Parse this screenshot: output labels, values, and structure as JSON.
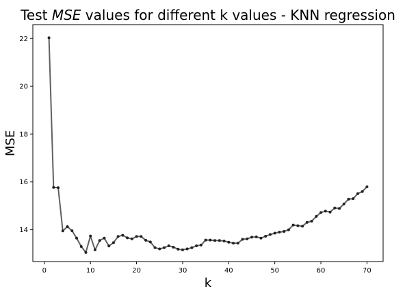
{
  "chart_data": {
    "type": "line",
    "title": "Test MSE values for different k values - KNN regression",
    "title_parts": {
      "prefix": "Test ",
      "emphasis": "MSE",
      "suffix": " values for different k values - KNN regression"
    },
    "xlabel": "k",
    "ylabel": "MSE",
    "xlim": [
      -2.5,
      73.5
    ],
    "ylim": [
      12.67,
      22.58
    ],
    "xticks": [
      0,
      10,
      20,
      30,
      40,
      50,
      60,
      70
    ],
    "yticks": [
      14,
      16,
      18,
      20,
      22
    ],
    "grid": false,
    "legend": "none",
    "series": [
      {
        "color": "#444444",
        "marker": "circle",
        "x": [
          1,
          2,
          3,
          4,
          5,
          6,
          7,
          8,
          9,
          10,
          11,
          12,
          13,
          14,
          15,
          16,
          17,
          18,
          19,
          20,
          21,
          22,
          23,
          24,
          25,
          26,
          27,
          28,
          29,
          30,
          31,
          32,
          33,
          34,
          35,
          36,
          37,
          38,
          39,
          40,
          41,
          42,
          43,
          44,
          45,
          46,
          47,
          48,
          49,
          50,
          51,
          52,
          53,
          54,
          55,
          56,
          57,
          58,
          59,
          60,
          61,
          62,
          63,
          64,
          65,
          66,
          67,
          68,
          69,
          70
        ],
        "y": [
          22.03,
          15.77,
          15.76,
          13.95,
          14.13,
          13.96,
          13.65,
          13.3,
          13.05,
          13.74,
          13.16,
          13.55,
          13.65,
          13.32,
          13.46,
          13.72,
          13.77,
          13.66,
          13.62,
          13.72,
          13.72,
          13.56,
          13.49,
          13.25,
          13.2,
          13.25,
          13.33,
          13.27,
          13.19,
          13.16,
          13.2,
          13.25,
          13.33,
          13.36,
          13.57,
          13.57,
          13.55,
          13.55,
          13.53,
          13.48,
          13.44,
          13.44,
          13.6,
          13.62,
          13.69,
          13.7,
          13.65,
          13.73,
          13.8,
          13.86,
          13.9,
          13.93,
          14.0,
          14.2,
          14.17,
          14.15,
          14.31,
          14.36,
          14.56,
          14.72,
          14.78,
          14.74,
          14.91,
          14.89,
          15.08,
          15.28,
          15.3,
          15.51,
          15.6,
          15.8
        ]
      }
    ]
  }
}
